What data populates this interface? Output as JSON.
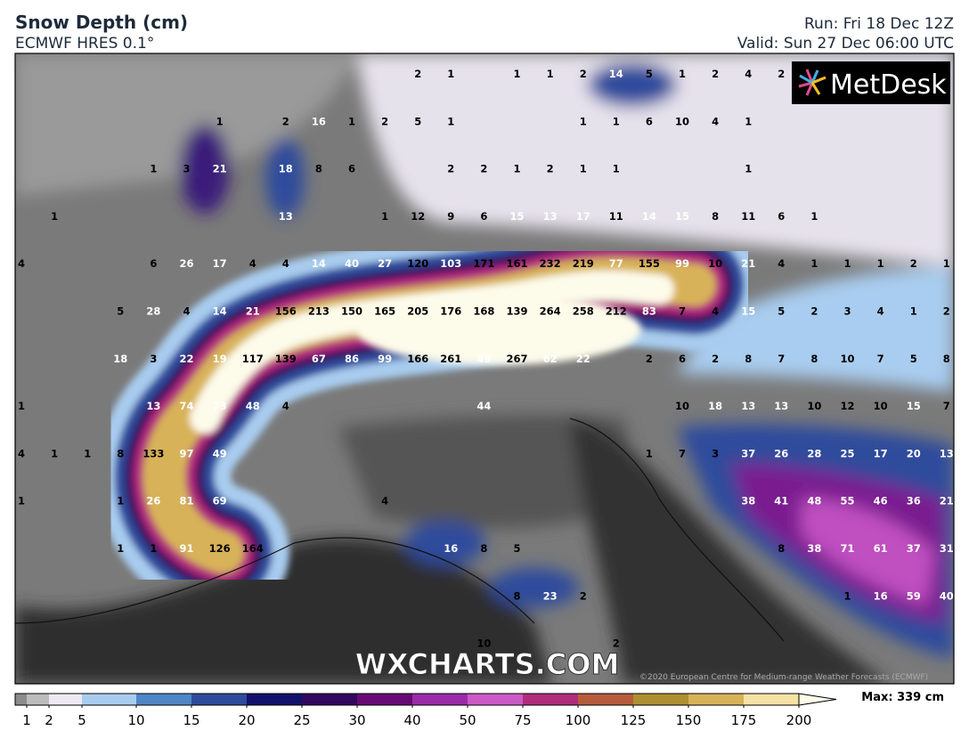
{
  "header": {
    "title": "Snow Depth (cm)",
    "subtitle": "ECMWF HRES 0.1°",
    "run": "Run: Fri 18 Dec 12Z",
    "valid": "Valid: Sun 27 Dec 06:00 UTC"
  },
  "logo": "MetDesk",
  "watermark": "WXCHARTS.COM",
  "copyright": "©2020 European Centre for Medium-range Weather Forecasts (ECMWF)",
  "map_labels": [
    [
      null,
      null,
      null,
      null,
      null,
      null,
      null,
      null,
      null,
      null,
      null,
      null,
      2,
      1,
      null,
      1,
      1,
      2,
      14,
      5,
      1,
      2,
      4,
      2,
      null,
      null,
      null,
      null,
      null
    ],
    [
      null,
      null,
      null,
      null,
      null,
      null,
      1,
      null,
      2,
      16,
      1,
      2,
      5,
      1,
      null,
      null,
      null,
      1,
      1,
      6,
      10,
      4,
      1,
      null,
      null,
      null,
      null,
      null,
      null
    ],
    [
      null,
      null,
      null,
      null,
      1,
      3,
      21,
      null,
      18,
      8,
      6,
      null,
      null,
      2,
      2,
      1,
      2,
      1,
      1,
      null,
      null,
      null,
      1,
      null,
      null,
      null,
      null,
      null,
      null
    ],
    [
      null,
      1,
      null,
      null,
      null,
      null,
      null,
      null,
      13,
      null,
      null,
      1,
      12,
      9,
      6,
      15,
      13,
      17,
      11,
      14,
      15,
      8,
      11,
      6,
      1,
      null,
      null,
      null,
      null
    ],
    [
      4,
      null,
      null,
      null,
      6,
      26,
      17,
      4,
      4,
      14,
      40,
      27,
      120,
      103,
      171,
      161,
      232,
      219,
      77,
      155,
      99,
      10,
      21,
      4,
      1,
      1,
      1,
      2,
      1
    ],
    [
      null,
      null,
      null,
      5,
      28,
      4,
      14,
      21,
      156,
      213,
      150,
      165,
      205,
      176,
      168,
      139,
      264,
      258,
      212,
      83,
      7,
      4,
      15,
      5,
      2,
      3,
      4,
      1,
      2
    ],
    [
      null,
      null,
      null,
      18,
      3,
      22,
      19,
      117,
      139,
      67,
      86,
      99,
      166,
      261,
      49,
      267,
      62,
      22,
      null,
      2,
      6,
      2,
      8,
      7,
      8,
      10,
      7,
      5,
      8
    ],
    [
      1,
      null,
      null,
      null,
      13,
      74,
      73,
      48,
      4,
      null,
      null,
      null,
      null,
      null,
      44,
      null,
      null,
      null,
      null,
      null,
      10,
      18,
      13,
      13,
      10,
      12,
      10,
      15,
      7
    ],
    [
      4,
      1,
      1,
      8,
      133,
      97,
      49,
      null,
      null,
      null,
      null,
      null,
      null,
      null,
      null,
      null,
      null,
      null,
      null,
      1,
      7,
      3,
      37,
      26,
      28,
      25,
      17,
      20,
      13
    ],
    [
      1,
      null,
      null,
      1,
      26,
      81,
      69,
      null,
      null,
      null,
      null,
      4,
      null,
      null,
      null,
      null,
      null,
      null,
      null,
      null,
      null,
      null,
      38,
      41,
      48,
      55,
      46,
      36,
      21
    ],
    [
      null,
      null,
      null,
      1,
      1,
      91,
      126,
      164,
      null,
      null,
      null,
      null,
      null,
      16,
      8,
      5,
      null,
      null,
      null,
      null,
      null,
      null,
      null,
      8,
      38,
      71,
      61,
      37,
      31
    ],
    [
      null,
      null,
      null,
      null,
      null,
      null,
      null,
      null,
      null,
      null,
      null,
      null,
      null,
      null,
      null,
      8,
      23,
      2,
      null,
      null,
      null,
      null,
      null,
      null,
      null,
      1,
      16,
      59,
      40
    ],
    [
      null,
      null,
      null,
      null,
      null,
      null,
      null,
      null,
      null,
      null,
      null,
      null,
      null,
      null,
      10,
      null,
      null,
      null,
      2,
      null,
      null,
      null,
      null,
      null,
      null,
      null,
      null,
      null,
      null
    ]
  ],
  "legend": {
    "ticks": [
      1,
      2,
      5,
      10,
      15,
      20,
      25,
      30,
      40,
      50,
      75,
      100,
      125,
      150,
      175,
      200
    ],
    "colors": [
      "#8c8c8c",
      "#bdbdbd",
      "#efe9f4",
      "#a8ccef",
      "#4f86c6",
      "#2e4c9c",
      "#12126c",
      "#34085c",
      "#680a74",
      "#9a2ca8",
      "#cc5ac6",
      "#b02c7c",
      "#b65c3c",
      "#ae9030",
      "#d8b258",
      "#f6e2a4",
      "#fdfbea"
    ],
    "max": "Max: 339 cm"
  }
}
